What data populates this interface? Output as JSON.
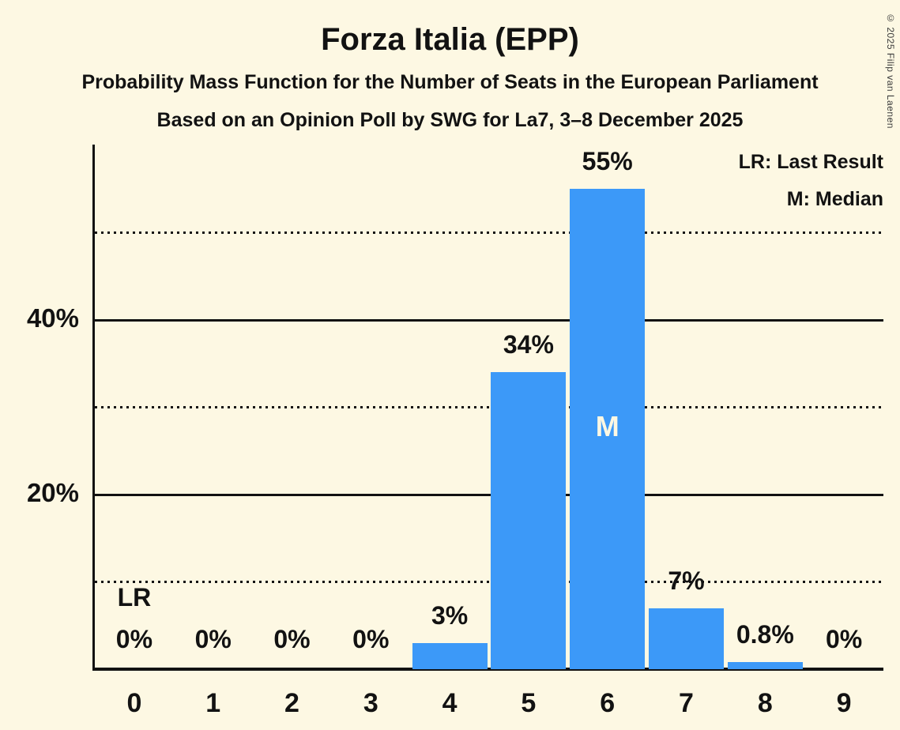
{
  "title": "Forza Italia (EPP)",
  "subtitle1": "Probability Mass Function for the Number of Seats in the European Parliament",
  "subtitle2": "Based on an Opinion Poll by SWG for La7, 3–8 December 2025",
  "copyright": "© 2025 Filip van Laenen",
  "legend": {
    "lr": "LR: Last Result",
    "m": "M: Median"
  },
  "colors": {
    "background": "#FDF8E3",
    "bar": "#3C99F8",
    "text": "#121212"
  },
  "chart_data": {
    "type": "bar",
    "title": "Forza Italia (EPP)",
    "xlabel": "",
    "ylabel": "",
    "categories": [
      "0",
      "1",
      "2",
      "3",
      "4",
      "5",
      "6",
      "7",
      "8",
      "9"
    ],
    "values": [
      0,
      0,
      0,
      0,
      3,
      34,
      55,
      7,
      0.8,
      0
    ],
    "value_labels": [
      "0%",
      "0%",
      "0%",
      "0%",
      "3%",
      "34%",
      "55%",
      "7%",
      "0.8%",
      "0%"
    ],
    "annotations": {
      "last_result_label": "LR",
      "last_result_category": 0,
      "median_label": "M",
      "median_category": 6
    },
    "y_axis": {
      "tick_labels": [
        "20%",
        "40%"
      ],
      "solid_gridlines_pct": [
        20,
        40
      ],
      "dotted_gridlines_pct": [
        10,
        30,
        50
      ],
      "ylim": [
        0,
        60.1
      ],
      "grid": true
    },
    "legend_position": "top-right"
  }
}
